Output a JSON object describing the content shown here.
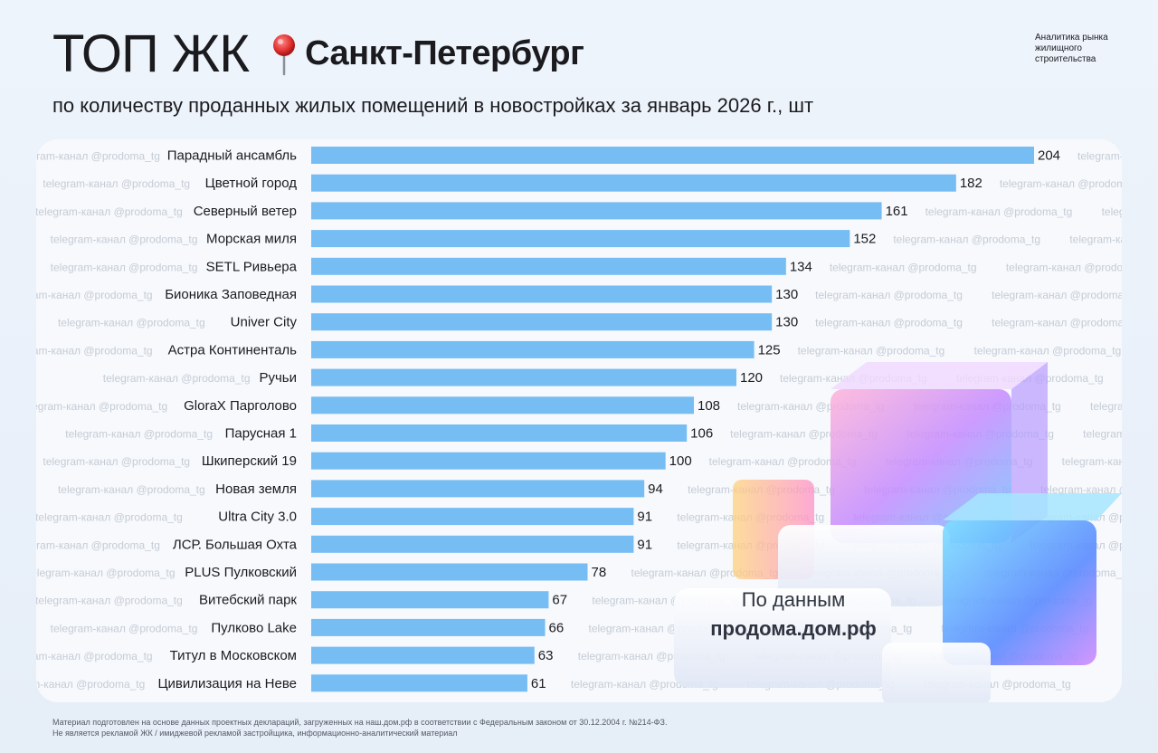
{
  "header": {
    "title_main": "ТОП ЖК",
    "title_city": "Санкт-Петербург",
    "subtitle": "по количеству проданных жилых помещений в новостройках за январь 2026 г., шт",
    "brand_text": "Аналитика рынка жилищного строительства"
  },
  "source": {
    "caption": "По данным",
    "site": "продома.дом.рф"
  },
  "watermark": "telegram-канал @prodoma_tg",
  "footer": {
    "line1": "Материал подготовлен на основе данных проектных деклараций, загруженных на наш.дом.рф в соответствии с Федеральным законом от 30.12.2004 г. №214-ФЗ.",
    "line2": "Не является рекламой ЖК / имиджевой рекламой застройщика, информационно-аналитический материал"
  },
  "colors": {
    "bar": "#76bdf4",
    "text": "#1b1b1f",
    "watermark": "#c5ccd6"
  },
  "chart_data": {
    "type": "bar",
    "orientation": "horizontal",
    "title": "ТОП ЖК Санкт-Петербург",
    "xlabel": "",
    "ylabel": "",
    "unit": "шт",
    "xlim": [
      0,
      204
    ],
    "grid": false,
    "legend": "none",
    "categories": [
      "Парадный ансамбль",
      "Цветной город",
      "Северный ветер",
      "Морская миля",
      "SETL Ривьера",
      "Бионика Заповедная",
      "Univer City",
      "Астра Континенталь",
      "Ручьи",
      "GloraX Парголово",
      "Парусная 1",
      "Шкиперский 19",
      "Новая земля",
      "Ultra City 3.0",
      "ЛСР. Большая Охта",
      "PLUS Пулковский",
      "Витебский парк",
      "Пулково Lake",
      "Титул в Московском",
      "Цивилизация на Неве"
    ],
    "values": [
      204,
      182,
      161,
      152,
      134,
      130,
      130,
      125,
      120,
      108,
      106,
      100,
      94,
      91,
      91,
      78,
      67,
      66,
      63,
      61
    ]
  }
}
